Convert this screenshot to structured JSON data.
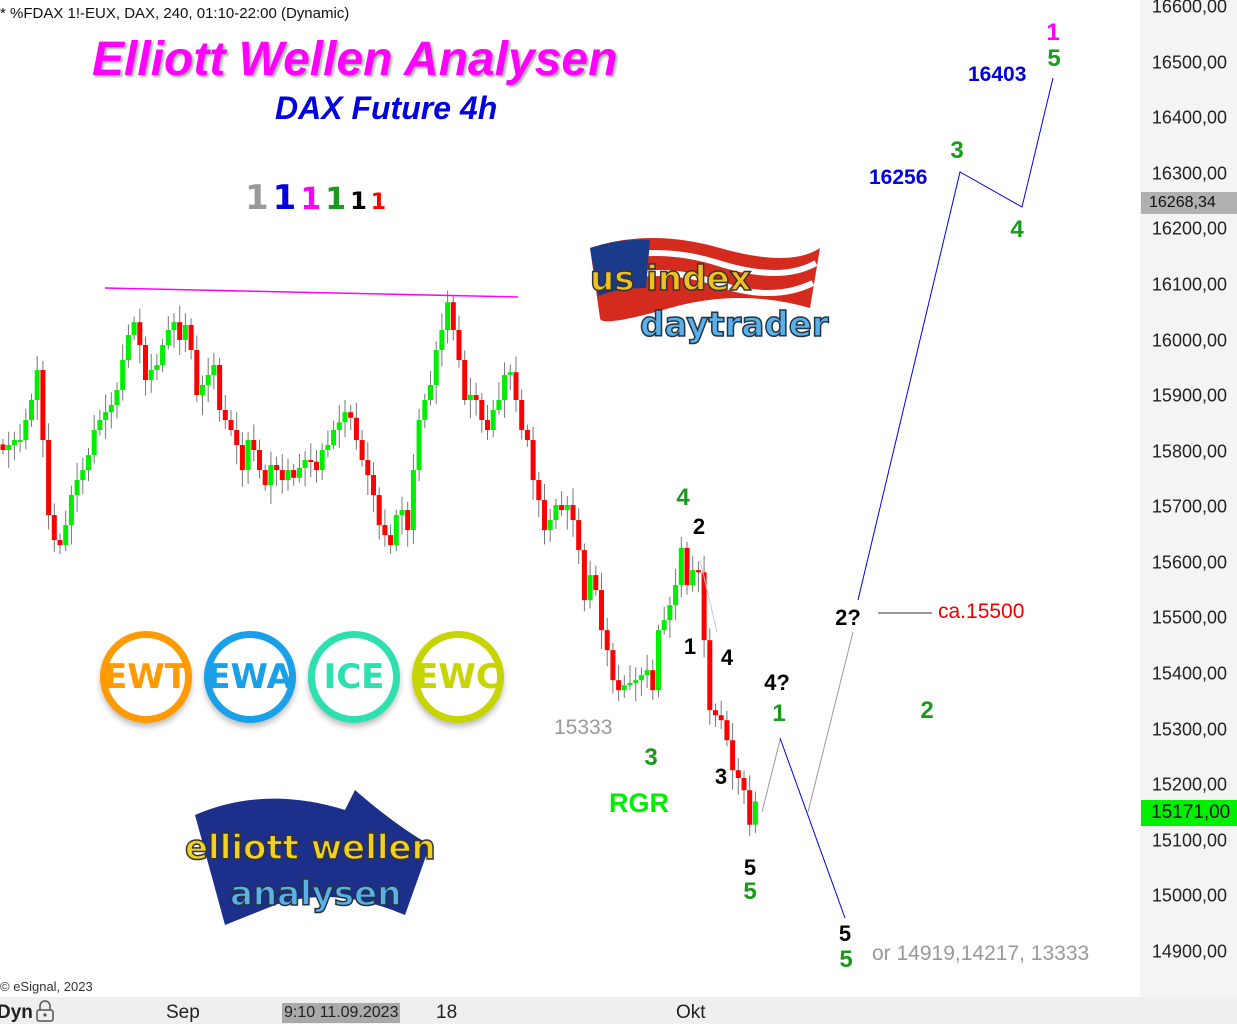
{
  "header": {
    "symbol_line": "* %FDAX 1!-EUX, DAX, 240, 01:10-22:00 (Dynamic)",
    "title": "Elliott Wellen Analysen",
    "subtitle": "DAX Future 4h",
    "copyright": "© eSignal, 2023"
  },
  "legend_ones": [
    {
      "text": "1",
      "color": "#999999"
    },
    {
      "text": "1",
      "color": "#0000e0"
    },
    {
      "text": "1",
      "color": "#ff00ff"
    },
    {
      "text": "1",
      "color": "#1a9a1a"
    },
    {
      "text": "1",
      "color": "#000000"
    },
    {
      "text": "1",
      "color": "#ff0000"
    }
  ],
  "badges": [
    {
      "text": "EWT",
      "color": "#ff9a00"
    },
    {
      "text": "EWA",
      "color": "#1aa0e8"
    },
    {
      "text": "ICE",
      "color": "#2ee0b0"
    },
    {
      "text": "EWC",
      "color": "#c8d400"
    }
  ],
  "logos": {
    "us": "us index daytrader",
    "ewa": "elliott wellen analysen"
  },
  "annotations": {
    "p15333": "15333",
    "rgr": "RGR",
    "ca15500": "ca.15500",
    "p16256": "16256",
    "p16403": "16403",
    "targets": "or 14919,14217, 13333",
    "w4g": "4",
    "w2k": "2",
    "w1k": "1",
    "w4k": "4",
    "w3k": "3",
    "w3g": "3",
    "w5k": "5",
    "w5g": "5",
    "w4q": "4?",
    "w1g": "1",
    "w2q": "2?",
    "w2g": "2",
    "w5k2": "5",
    "w5g2": "5",
    "w3g2": "3",
    "w4g2": "4",
    "w5g3": "5",
    "w1m": "1"
  },
  "yaxis": {
    "labels": [
      "16600,00",
      "16500,00",
      "16400,00",
      "16300,00",
      "16200,00",
      "16100,00",
      "16000,00",
      "15900,00",
      "15800,00",
      "15700,00",
      "15600,00",
      "15500,00",
      "15400,00",
      "15300,00",
      "15200,00",
      "15100,00",
      "15000,00",
      "14900,00"
    ],
    "crosshair_price": "16268,34",
    "last_price": "15171,00",
    "last_price_color": "#00ee00"
  },
  "xaxis": {
    "mode": "Dyn",
    "labels": [
      "Sep",
      "18",
      "Okt"
    ],
    "crosshair_date": "9:10 11.09.2023"
  },
  "chart_data": {
    "type": "candlestick",
    "ylim": [
      14900,
      16600
    ],
    "grid": false,
    "up_color": "#00ee00",
    "down_color": "#ff0000",
    "closes": [
      15803,
      15812,
      15821,
      15821,
      15857,
      15893,
      15947,
      15821,
      15686,
      15641,
      15632,
      15668,
      15722,
      15749,
      15767,
      15794,
      15839,
      15857,
      15871,
      15884,
      15911,
      15965,
      16010,
      16033,
      15992,
      15929,
      15947,
      15956,
      15992,
      16019,
      16033,
      16001,
      16028,
      15983,
      15902,
      15920,
      15938,
      15956,
      15875,
      15857,
      15839,
      15812,
      15767,
      15821,
      15803,
      15767,
      15740,
      15776,
      15767,
      15749,
      15767,
      15753,
      15771,
      15785,
      15782,
      15767,
      15803,
      15812,
      15839,
      15853,
      15871,
      15861,
      15821,
      15785,
      15758,
      15722,
      15668,
      15650,
      15632,
      15686,
      15695,
      15659,
      15767,
      15857,
      15893,
      15920,
      15983,
      16019,
      16069,
      16019,
      15965,
      15893,
      15902,
      15893,
      15857,
      15839,
      15875,
      15893,
      15938,
      15943,
      15893,
      15839,
      15821,
      15749,
      15713,
      15659,
      15677,
      15704,
      15695,
      15704,
      15677,
      15623,
      15533,
      15578,
      15551,
      15479,
      15443,
      15389,
      15371,
      15380,
      15384,
      15389,
      15398,
      15407,
      15371,
      15479,
      15497,
      15524,
      15560,
      15627,
      15560,
      15587,
      15583,
      15461,
      15335,
      15326,
      15317,
      15281,
      15227,
      15213,
      15191,
      15129,
      15171
    ],
    "resistance_line": [
      16070,
      16058
    ]
  }
}
